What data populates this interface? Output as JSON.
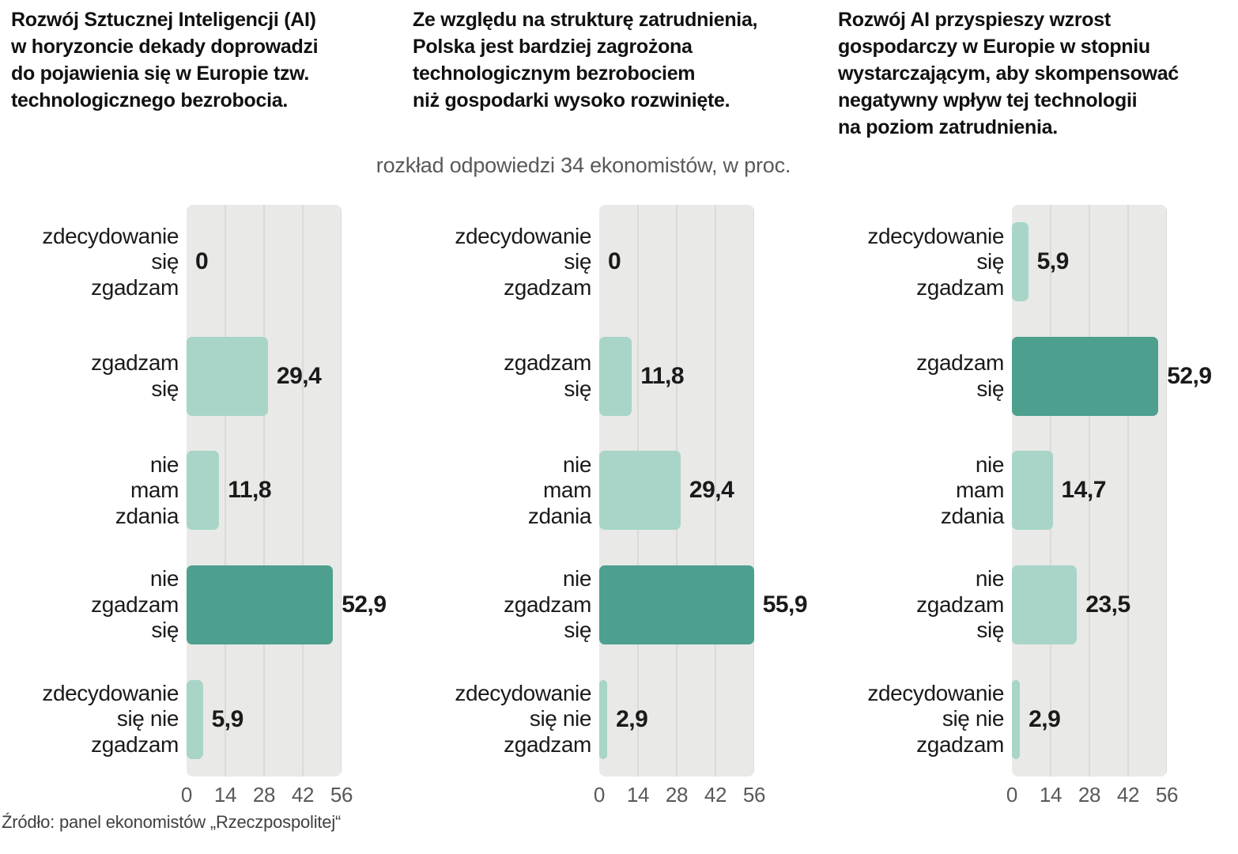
{
  "subtitle": "rozkład odpowiedzi 34 ekonomistów, w proc.",
  "source": "Źródło: panel ekonomistów „Rzeczpospolitej“",
  "colors": {
    "bar_light": "#a8d5c8",
    "bar_dark": "#4da08d",
    "plot_bg": "#e9e9e7",
    "grid": "#dadad8",
    "text": "#1a1a1a",
    "muted": "#58595b"
  },
  "chart_data": [
    {
      "type": "bar",
      "orientation": "horizontal",
      "title": "Rozwój Sztucznej Inteligencji (AI)\nw horyzoncie dekady doprowadzi\ndo pojawienia się w Europie tzw.\ntechnologicznego bezrobocia.",
      "categories": [
        "zdecydowanie\nsię\nzgadzam",
        "zgadzam\nsię",
        "nie\nmam\nzdania",
        "nie\nzgadzam\nsię",
        "zdecydowanie\nsię nie\nzgadzam"
      ],
      "values": [
        0,
        29.4,
        11.8,
        52.9,
        5.9
      ],
      "value_labels": [
        "0",
        "29,4",
        "11,8",
        "52,9",
        "5,9"
      ],
      "highlight_index": 3,
      "xlim": [
        0,
        56
      ],
      "xticks": [
        0,
        14,
        28,
        42,
        56
      ],
      "grid": true,
      "legend": false
    },
    {
      "type": "bar",
      "orientation": "horizontal",
      "title": "Ze względu na strukturę zatrudnienia,\nPolska jest bardziej zagrożona\ntechnologicznym bezrobociem\nniż gospodarki wysoko rozwinięte.",
      "categories": [
        "zdecydowanie\nsię\nzgadzam",
        "zgadzam\nsię",
        "nie\nmam\nzdania",
        "nie\nzgadzam\nsię",
        "zdecydowanie\nsię nie\nzgadzam"
      ],
      "values": [
        0,
        11.8,
        29.4,
        55.9,
        2.9
      ],
      "value_labels": [
        "0",
        "11,8",
        "29,4",
        "55,9",
        "2,9"
      ],
      "highlight_index": 3,
      "xlim": [
        0,
        56
      ],
      "xticks": [
        0,
        14,
        28,
        42,
        56
      ],
      "grid": true,
      "legend": false
    },
    {
      "type": "bar",
      "orientation": "horizontal",
      "title": "Rozwój AI przyspieszy wzrost\ngospodarczy w Europie w stopniu\nwystarczającym, aby skompensować\nnegatywny wpływ tej technologii\nna poziom zatrudnienia.",
      "categories": [
        "zdecydowanie\nsię\nzgadzam",
        "zgadzam\nsię",
        "nie\nmam\nzdania",
        "nie\nzgadzam\nsię",
        "zdecydowanie\nsię nie\nzgadzam"
      ],
      "values": [
        5.9,
        52.9,
        14.7,
        23.5,
        2.9
      ],
      "value_labels": [
        "5,9",
        "52,9",
        "14,7",
        "23,5",
        "2,9"
      ],
      "highlight_index": 1,
      "xlim": [
        0,
        56
      ],
      "xticks": [
        0,
        14,
        28,
        42,
        56
      ],
      "grid": true,
      "legend": false
    }
  ]
}
